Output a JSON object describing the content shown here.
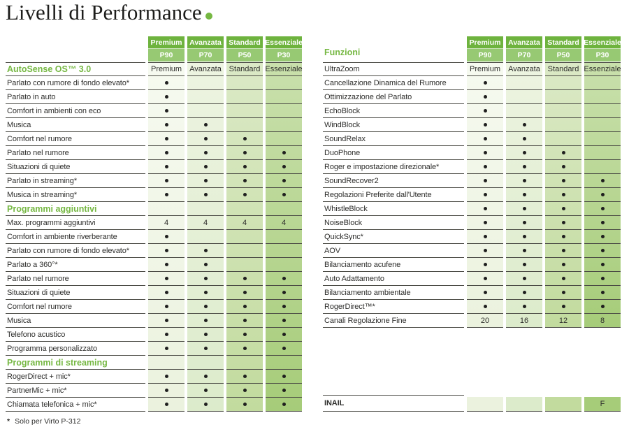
{
  "title": {
    "text": "Livelli di Performance"
  },
  "levels": [
    {
      "name": "Premium",
      "code": "P90"
    },
    {
      "name": "Avanzata",
      "code": "P70"
    },
    {
      "name": "Standard",
      "code": "P50"
    },
    {
      "name": "Essenziale",
      "code": "P30"
    }
  ],
  "colors": {
    "accent": "#76b843",
    "title_color": "#1d1d1b",
    "header_name_bg": "#6eb33e",
    "header_code_bg": "#97c973",
    "line": "#4a4a44",
    "dot": "#1f1f1f",
    "col_top": [
      "#f6faf0",
      "#edf4e1",
      "#dbe9c6",
      "#c9e0ac"
    ],
    "col_bottom": [
      "#ebf2de",
      "#dcebcb",
      "#c2db9e",
      "#a6cc79"
    ]
  },
  "left_table": {
    "rows": [
      {
        "type": "section",
        "label": "AutoSense OS™ 3.0",
        "values": [
          "Premium",
          "Avanzata",
          "Standard",
          "Essenziale"
        ]
      },
      {
        "type": "feature",
        "label": "Parlato con rumore di fondo elevato*",
        "values": [
          "dot",
          "",
          "",
          ""
        ]
      },
      {
        "type": "feature",
        "label": "Parlato in auto",
        "values": [
          "dot",
          "",
          "",
          ""
        ]
      },
      {
        "type": "feature",
        "label": "Comfort in ambienti con eco",
        "values": [
          "dot",
          "",
          "",
          ""
        ]
      },
      {
        "type": "feature",
        "label": "Musica",
        "values": [
          "dot",
          "dot",
          "",
          ""
        ]
      },
      {
        "type": "feature",
        "label": "Comfort nel rumore",
        "values": [
          "dot",
          "dot",
          "dot",
          ""
        ]
      },
      {
        "type": "feature",
        "label": "Parlato nel rumore",
        "values": [
          "dot",
          "dot",
          "dot",
          "dot"
        ]
      },
      {
        "type": "feature",
        "label": "Situazioni di quiete",
        "values": [
          "dot",
          "dot",
          "dot",
          "dot"
        ]
      },
      {
        "type": "feature",
        "label": "Parlato in streaming*",
        "values": [
          "dot",
          "dot",
          "dot",
          "dot"
        ]
      },
      {
        "type": "feature",
        "label": "Musica in streaming*",
        "values": [
          "dot",
          "dot",
          "dot",
          "dot"
        ]
      },
      {
        "type": "section",
        "label": "Programmi aggiuntivi",
        "values": [
          "",
          "",
          "",
          ""
        ]
      },
      {
        "type": "feature",
        "label": "Max. programmi aggiuntivi",
        "values": [
          "4",
          "4",
          "4",
          "4"
        ]
      },
      {
        "type": "feature",
        "label": "Comfort in ambiente riverberante",
        "values": [
          "dot",
          "",
          "",
          ""
        ]
      },
      {
        "type": "feature",
        "label": "Parlato con rumore di fondo elevato*",
        "values": [
          "dot",
          "dot",
          "",
          ""
        ]
      },
      {
        "type": "feature",
        "label": "Parlato a 360°*",
        "values": [
          "dot",
          "dot",
          "",
          ""
        ]
      },
      {
        "type": "feature",
        "label": "Parlato nel rumore",
        "values": [
          "dot",
          "dot",
          "dot",
          "dot"
        ]
      },
      {
        "type": "feature",
        "label": "Situazioni di quiete",
        "values": [
          "dot",
          "dot",
          "dot",
          "dot"
        ]
      },
      {
        "type": "feature",
        "label": "Comfort nel rumore",
        "values": [
          "dot",
          "dot",
          "dot",
          "dot"
        ]
      },
      {
        "type": "feature",
        "label": "Musica",
        "values": [
          "dot",
          "dot",
          "dot",
          "dot"
        ]
      },
      {
        "type": "feature",
        "label": "Telefono acustico",
        "values": [
          "dot",
          "dot",
          "dot",
          "dot"
        ]
      },
      {
        "type": "feature",
        "label": "Programma personalizzato",
        "values": [
          "dot",
          "dot",
          "dot",
          "dot"
        ]
      },
      {
        "type": "section",
        "label": "Programmi di streaming",
        "values": [
          "",
          "",
          "",
          ""
        ]
      },
      {
        "type": "feature",
        "label": "RogerDirect + mic*",
        "values": [
          "dot",
          "dot",
          "dot",
          "dot"
        ]
      },
      {
        "type": "feature",
        "label": "PartnerMic + mic*",
        "values": [
          "dot",
          "dot",
          "dot",
          "dot"
        ]
      },
      {
        "type": "feature",
        "label": "Chiamata telefonica + mic*",
        "values": [
          "dot",
          "dot",
          "dot",
          "dot"
        ]
      }
    ]
  },
  "right_table": {
    "section_label": "Funzioni",
    "rows": [
      {
        "type": "feature",
        "label": "UltraZoom",
        "values": [
          "Premium",
          "Avanzata",
          "Standard",
          "Essenziale"
        ]
      },
      {
        "type": "feature",
        "label": "Cancellazione Dinamica del Rumore",
        "values": [
          "dot",
          "",
          "",
          ""
        ]
      },
      {
        "type": "feature",
        "label": "Ottimizzazione del Parlato",
        "values": [
          "dot",
          "",
          "",
          ""
        ]
      },
      {
        "type": "feature",
        "label": "EchoBlock",
        "values": [
          "dot",
          "",
          "",
          ""
        ]
      },
      {
        "type": "feature",
        "label": "WindBlock",
        "values": [
          "dot",
          "dot",
          "",
          ""
        ]
      },
      {
        "type": "feature",
        "label": "SoundRelax",
        "values": [
          "dot",
          "dot",
          "",
          ""
        ]
      },
      {
        "type": "feature",
        "label": "DuoPhone",
        "values": [
          "dot",
          "dot",
          "dot",
          ""
        ]
      },
      {
        "type": "feature",
        "label": "Roger e impostazione direzionale*",
        "values": [
          "dot",
          "dot",
          "dot",
          ""
        ]
      },
      {
        "type": "feature",
        "label": "SoundRecover2",
        "values": [
          "dot",
          "dot",
          "dot",
          "dot"
        ]
      },
      {
        "type": "feature",
        "label": "Regolazioni Preferite dall'Utente",
        "values": [
          "dot",
          "dot",
          "dot",
          "dot"
        ]
      },
      {
        "type": "feature",
        "label": "WhistleBlock",
        "values": [
          "dot",
          "dot",
          "dot",
          "dot"
        ]
      },
      {
        "type": "feature",
        "label": "NoiseBlock",
        "values": [
          "dot",
          "dot",
          "dot",
          "dot"
        ]
      },
      {
        "type": "feature",
        "label": "QuickSync*",
        "values": [
          "dot",
          "dot",
          "dot",
          "dot"
        ]
      },
      {
        "type": "feature",
        "label": "AOV",
        "values": [
          "dot",
          "dot",
          "dot",
          "dot"
        ]
      },
      {
        "type": "feature",
        "label": "Bilanciamento acufene",
        "values": [
          "dot",
          "dot",
          "dot",
          "dot"
        ]
      },
      {
        "type": "feature",
        "label": "Auto Adattamento",
        "values": [
          "dot",
          "dot",
          "dot",
          "dot"
        ]
      },
      {
        "type": "feature",
        "label": "Bilanciamento ambientale",
        "values": [
          "dot",
          "dot",
          "dot",
          "dot"
        ]
      },
      {
        "type": "feature",
        "label": "RogerDirect™*",
        "values": [
          "dot",
          "dot",
          "dot",
          "dot"
        ]
      },
      {
        "type": "feature",
        "label": "Canali Regolazione Fine",
        "values": [
          "20",
          "16",
          "12",
          "8"
        ]
      }
    ]
  },
  "inail_row": {
    "label": "INAIL",
    "values": [
      "",
      "",
      "",
      "F"
    ]
  },
  "footnote": {
    "marker": "*",
    "text": "Solo per Virto P-312"
  }
}
